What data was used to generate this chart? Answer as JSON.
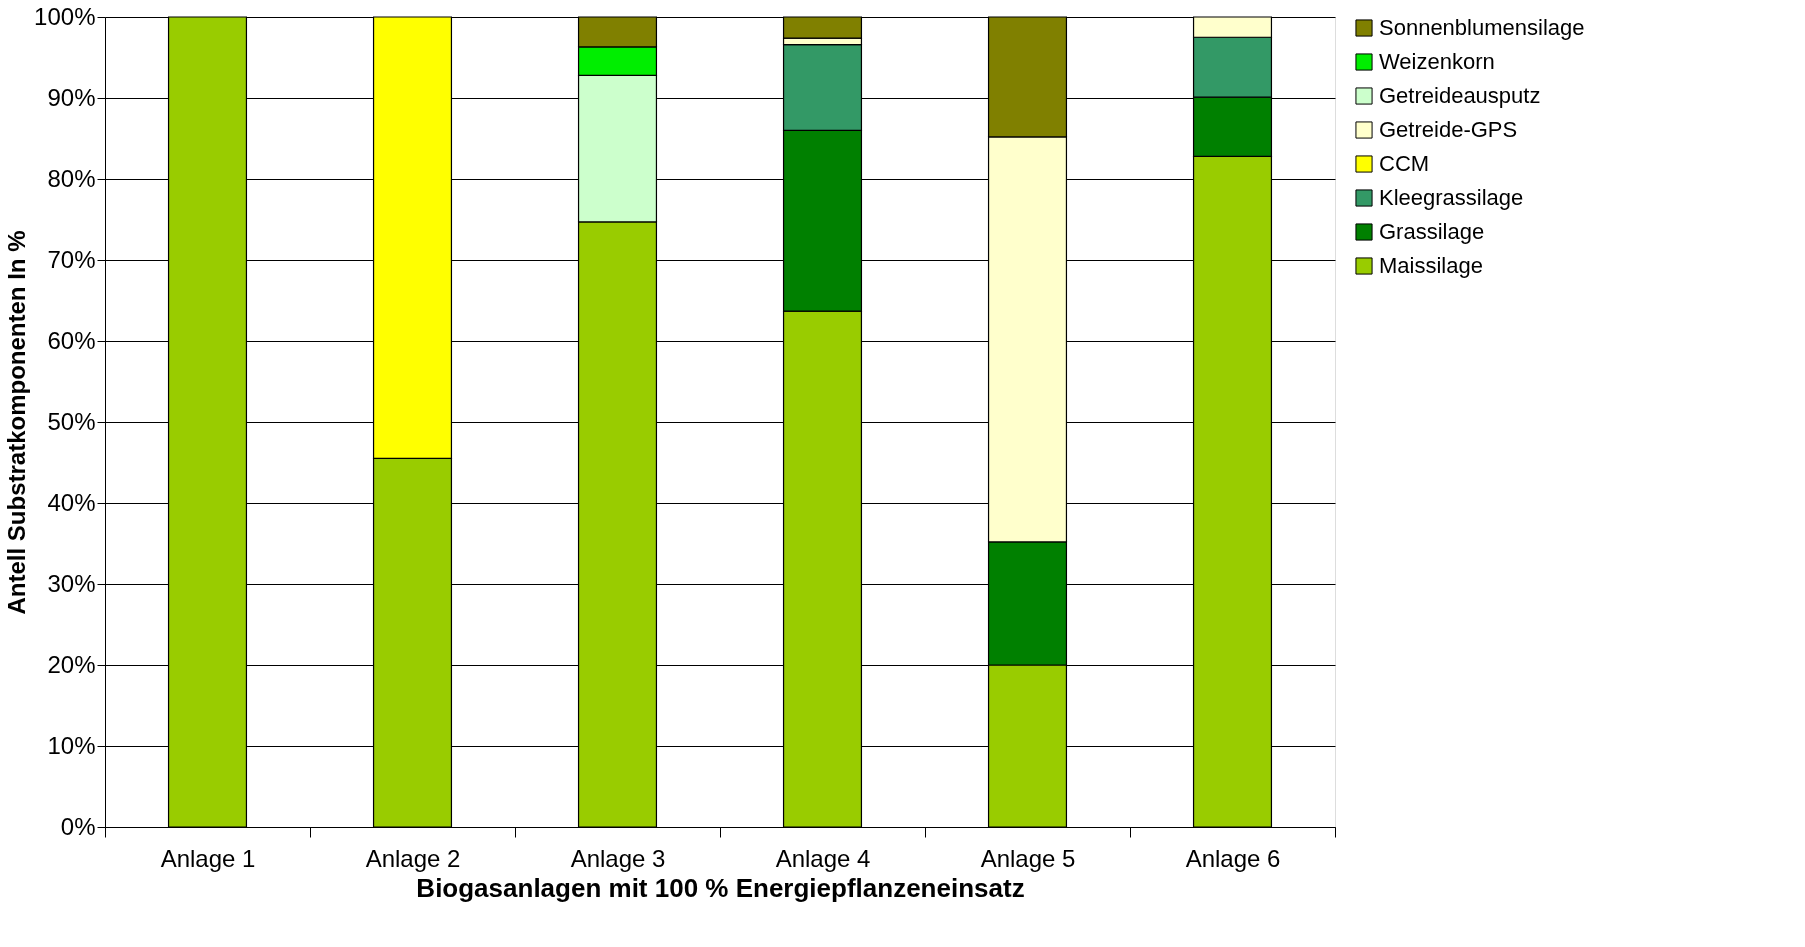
{
  "chart_data": {
    "type": "bar",
    "stacked": true,
    "xlabel": "Biogasanlagen mit 100 % Energiepflanzeneinsatz",
    "ylabel": "Antell Substratkomponenten In %",
    "categories": [
      "Anlage 1",
      "Anlage 2",
      "Anlage 3",
      "Anlage 4",
      "Anlage 5",
      "Anlage 6"
    ],
    "series": [
      {
        "name": "Maissilage",
        "color": "#99cc00",
        "values": [
          100,
          45.5,
          74.7,
          63.7,
          20,
          82.8
        ]
      },
      {
        "name": "Grassilage",
        "color": "#008000",
        "values": [
          0,
          0,
          0,
          22.3,
          15.2,
          7.3
        ]
      },
      {
        "name": "Kleegrassilage",
        "color": "#339966",
        "values": [
          0,
          0,
          0,
          10.6,
          0,
          7.4
        ]
      },
      {
        "name": "CCM",
        "color": "#ffff00",
        "values": [
          0,
          54.5,
          0,
          0,
          0,
          0
        ]
      },
      {
        "name": "Getreide-GPS",
        "color": "#ffffcc",
        "values": [
          0,
          0,
          0,
          0.8,
          50,
          2.5
        ]
      },
      {
        "name": "Getreideausputz",
        "color": "#ccffcc",
        "values": [
          0,
          0,
          18.1,
          0,
          0,
          0
        ]
      },
      {
        "name": "Weizenkorn",
        "color": "#00ee00",
        "values": [
          0,
          0,
          3.5,
          0,
          0,
          0
        ]
      },
      {
        "name": "Sonnenblumensilage",
        "color": "#808000",
        "values": [
          0,
          0,
          3.7,
          2.6,
          14.8,
          0
        ]
      }
    ],
    "ylim": [
      0,
      100
    ],
    "yticks": [
      {
        "value": 0,
        "label": "0%"
      },
      {
        "value": 10,
        "label": "10%"
      },
      {
        "value": 20,
        "label": "20%"
      },
      {
        "value": 30,
        "label": "30%"
      },
      {
        "value": 40,
        "label": "40%"
      },
      {
        "value": 50,
        "label": "50%"
      },
      {
        "value": 60,
        "label": "60%"
      },
      {
        "value": 70,
        "label": "70%"
      },
      {
        "value": 80,
        "label": "80%"
      },
      {
        "value": 90,
        "label": "90%"
      },
      {
        "value": 100,
        "label": "100%"
      }
    ],
    "grid": "y",
    "legend": "right"
  }
}
